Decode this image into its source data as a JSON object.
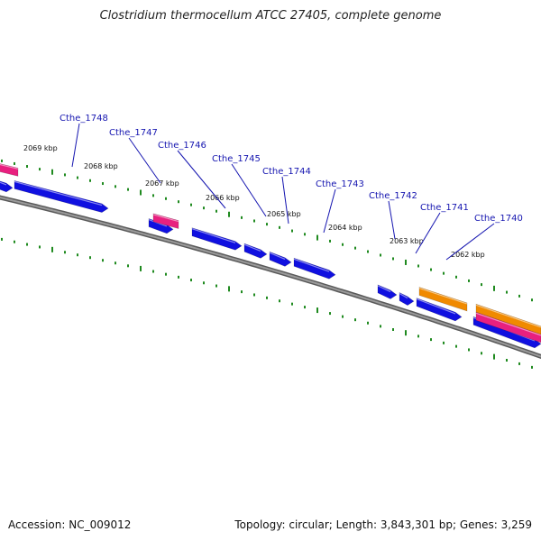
{
  "title": "Clostridium thermocellum ATCC 27405, complete genome",
  "footer": {
    "accession": "Accession: NC_009012",
    "stats": "Topology: circular; Length: 3,843,301 bp; Genes: 3,259"
  },
  "colors": {
    "backbone": "#808080",
    "cds": "#1010e0",
    "pink": "#e8207f",
    "orange": "#f08a00",
    "tick": "#1f8a1f",
    "label": "#1515b0"
  },
  "scale_labels": [
    "2069 kbp",
    "2068 kbp",
    "2067 kbp",
    "2066 kbp",
    "2065 kbp",
    "2064 kbp",
    "2063 kbp",
    "2062 kbp"
  ],
  "gene_labels": [
    "Cthe_1748",
    "Cthe_1747",
    "Cthe_1746",
    "Cthe_1745",
    "Cthe_1744",
    "Cthe_1743",
    "Cthe_1742",
    "Cthe_1741",
    "Cthe_1740"
  ]
}
